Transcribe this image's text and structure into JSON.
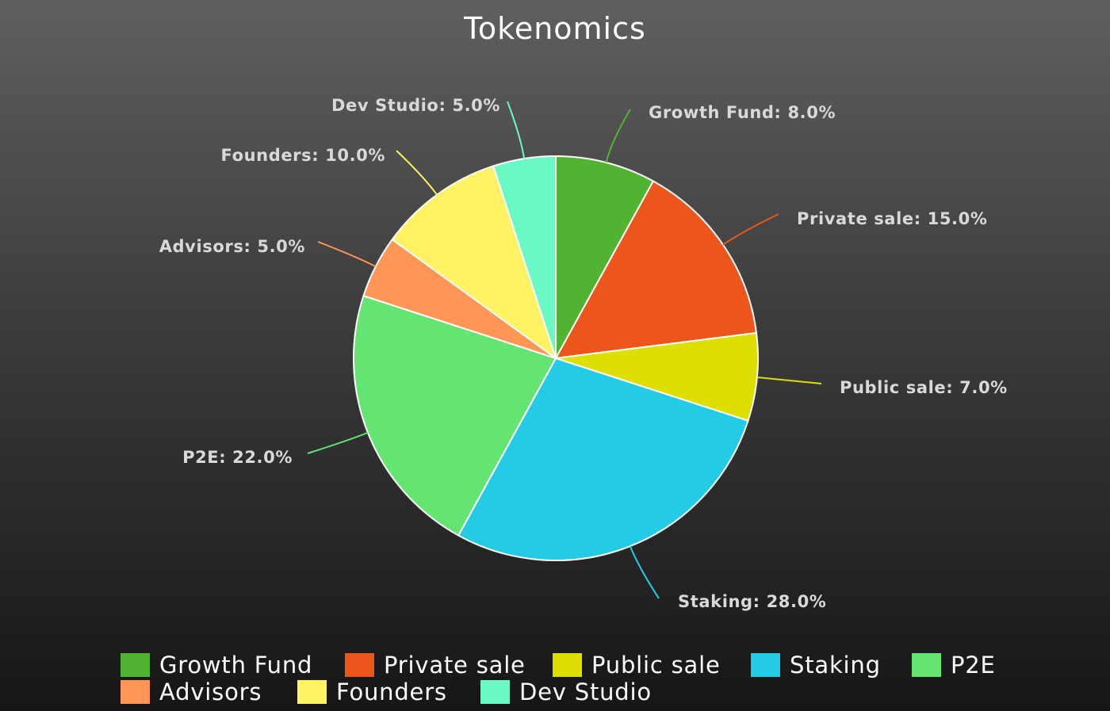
{
  "chart_data": {
    "type": "pie",
    "title": "Tokenomics",
    "slices": [
      {
        "name": "Growth Fund",
        "value": 8.0,
        "label": "Growth Fund: 8.0%",
        "color": "#50b432"
      },
      {
        "name": "Private sale",
        "value": 15.0,
        "label": "Private sale: 15.0%",
        "color": "#ed561b"
      },
      {
        "name": "Public sale",
        "value": 7.0,
        "label": "Public sale: 7.0%",
        "color": "#dddf00"
      },
      {
        "name": "Staking",
        "value": 28.0,
        "label": "Staking: 28.0%",
        "color": "#24cbe5"
      },
      {
        "name": "P2E",
        "value": 22.0,
        "label": "P2E: 22.0%",
        "color": "#64e572"
      },
      {
        "name": "Advisors",
        "value": 5.0,
        "label": "Advisors: 5.0%",
        "color": "#ff9655"
      },
      {
        "name": "Founders",
        "value": 10.0,
        "label": "Founders: 10.0%",
        "color": "#fff263"
      },
      {
        "name": "Dev Studio",
        "value": 5.0,
        "label": "Dev Studio: 5.0%",
        "color": "#6af9c4"
      }
    ],
    "legend_position": "bottom"
  }
}
